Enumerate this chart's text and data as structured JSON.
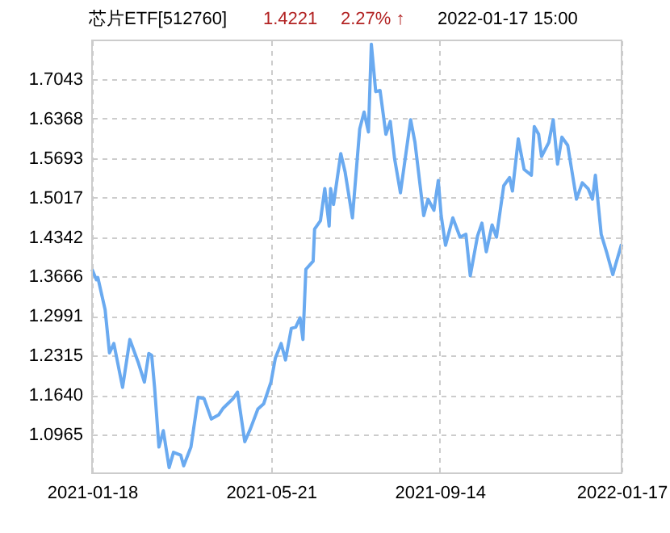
{
  "chart_data": {
    "type": "line",
    "title": "芯片ETF[512760]",
    "annotations": [
      "1.4221",
      "2.27% ↑",
      "2022-01-17 15:00"
    ],
    "x": [
      "2021-01-18",
      "2021-01-21",
      "2021-01-22",
      "2021-01-27",
      "2021-01-30",
      "2021-02-02",
      "2021-02-08",
      "2021-02-13",
      "2021-02-19",
      "2021-02-23",
      "2021-02-26",
      "2021-02-28",
      "2021-03-02",
      "2021-03-05",
      "2021-03-08",
      "2021-03-12",
      "2021-03-15",
      "2021-03-20",
      "2021-03-22",
      "2021-03-27",
      "2021-04-01",
      "2021-04-05",
      "2021-04-10",
      "2021-04-15",
      "2021-04-18",
      "2021-04-25",
      "2021-04-28",
      "2021-05-03",
      "2021-05-07",
      "2021-05-12",
      "2021-05-16",
      "2021-05-21",
      "2021-05-24",
      "2021-05-28",
      "2021-05-31",
      "2021-06-04",
      "2021-06-07",
      "2021-06-10",
      "2021-06-12",
      "2021-06-14",
      "2021-06-19",
      "2021-06-20",
      "2021-06-24",
      "2021-06-27",
      "2021-06-30",
      "2021-07-01",
      "2021-07-03",
      "2021-07-08",
      "2021-07-11",
      "2021-07-16",
      "2021-07-21",
      "2021-07-24",
      "2021-07-27",
      "2021-07-29",
      "2021-08-01",
      "2021-08-04",
      "2021-08-08",
      "2021-08-11",
      "2021-08-14",
      "2021-08-18",
      "2021-08-25",
      "2021-08-28",
      "2021-09-03",
      "2021-09-06",
      "2021-09-10",
      "2021-09-13",
      "2021-09-15",
      "2021-09-18",
      "2021-09-23",
      "2021-09-28",
      "2021-10-02",
      "2021-10-05",
      "2021-10-10",
      "2021-10-13",
      "2021-10-16",
      "2021-10-20",
      "2021-10-23",
      "2021-10-28",
      "2021-11-01",
      "2021-11-03",
      "2021-11-07",
      "2021-11-11",
      "2021-11-16",
      "2021-11-18",
      "2021-11-21",
      "2021-11-23",
      "2021-11-28",
      "2021-12-01",
      "2021-12-04",
      "2021-12-07",
      "2021-12-11",
      "2021-12-17",
      "2021-12-21",
      "2021-12-25",
      "2021-12-28",
      "2021-12-30",
      "2022-01-03",
      "2022-01-07",
      "2022-01-11",
      "2022-01-13",
      "2022-01-17"
    ],
    "series": [
      {
        "color": "#6aaaf0",
        "values": [
          1.379,
          1.361,
          1.365,
          1.31,
          1.236,
          1.252,
          1.177,
          1.259,
          1.218,
          1.186,
          1.235,
          1.232,
          1.177,
          1.075,
          1.103,
          1.04,
          1.066,
          1.061,
          1.043,
          1.075,
          1.16,
          1.158,
          1.123,
          1.13,
          1.141,
          1.158,
          1.169,
          1.084,
          1.107,
          1.14,
          1.149,
          1.186,
          1.227,
          1.252,
          1.224,
          1.278,
          1.28,
          1.296,
          1.259,
          1.379,
          1.393,
          1.448,
          1.462,
          1.517,
          1.453,
          1.517,
          1.49,
          1.577,
          1.545,
          1.467,
          1.619,
          1.648,
          1.614,
          1.764,
          1.683,
          1.685,
          1.61,
          1.632,
          1.568,
          1.51,
          1.635,
          1.596,
          1.471,
          1.499,
          1.48,
          1.531,
          1.471,
          1.42,
          1.467,
          1.434,
          1.439,
          1.368,
          1.436,
          1.458,
          1.409,
          1.455,
          1.434,
          1.522,
          1.536,
          1.513,
          1.602,
          1.55,
          1.54,
          1.623,
          1.61,
          1.572,
          1.596,
          1.635,
          1.559,
          1.605,
          1.591,
          1.499,
          1.527,
          1.517,
          1.499,
          1.54,
          1.439,
          1.406,
          1.37,
          1.388,
          1.422
        ]
      }
    ],
    "xlim": [
      "2021-01-18",
      "2022-01-17"
    ],
    "xticks": [
      "2021-01-18",
      "2021-05-21",
      "2021-09-14",
      "2022-01-17"
    ],
    "ylim": [
      1.0302,
      1.7706
    ],
    "yticks": [
      1.0965,
      {
        "value": 1.164,
        "label": "1.1640"
      },
      1.2315,
      1.2991,
      1.3666,
      1.4342,
      1.5017,
      1.5693,
      1.6368,
      1.7043
    ],
    "grid": true,
    "marker": "none",
    "line_style": "solid"
  }
}
